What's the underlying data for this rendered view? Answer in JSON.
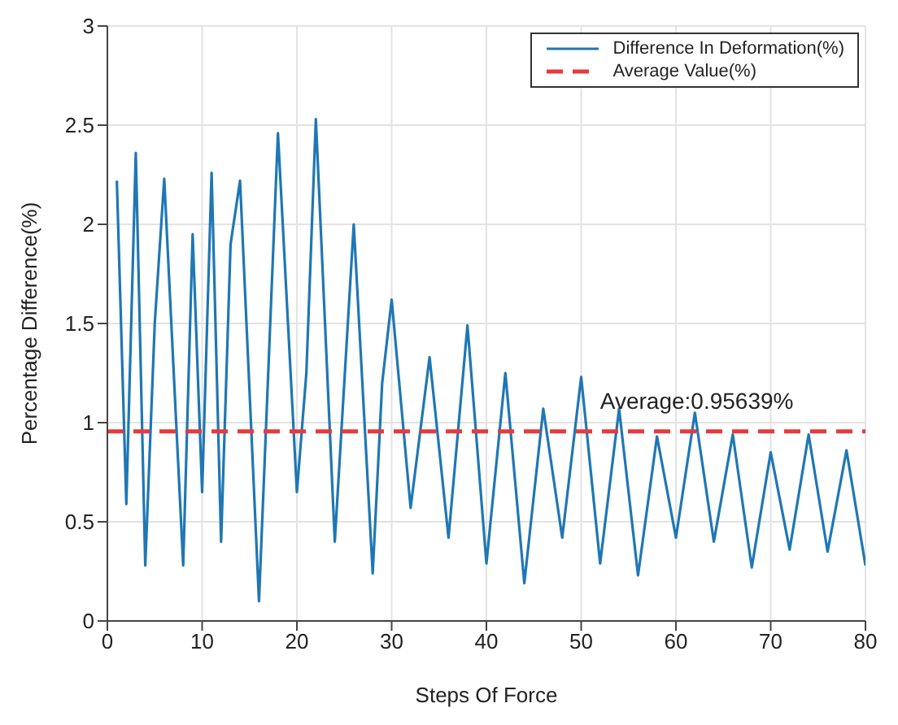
{
  "chart_data": {
    "type": "line",
    "xlabel": "Steps Of Force",
    "ylabel": "Percentage Difference(%)",
    "xlim": [
      0,
      80
    ],
    "xticks": [
      0,
      10,
      20,
      30,
      40,
      50,
      60,
      70,
      80
    ],
    "ylim": [
      0,
      3
    ],
    "yticks": [
      0,
      0.5,
      1,
      1.5,
      2,
      2.5,
      3
    ],
    "grid": true,
    "legend": "top right",
    "marker": "none",
    "series": [
      {
        "name": "Difference In Deformation(%)",
        "color": "#1f77b4",
        "line_style": "solid",
        "x": [
          1,
          2,
          3,
          4,
          5,
          6,
          8,
          9,
          10,
          11,
          12,
          13,
          14,
          16,
          18,
          20,
          21,
          22,
          24,
          26,
          28,
          29,
          30,
          32,
          34,
          36,
          38,
          40,
          42,
          44,
          46,
          48,
          50,
          52,
          54,
          56,
          58,
          60,
          62,
          64,
          66,
          68,
          70,
          72,
          74,
          76,
          78,
          80
        ],
        "values": [
          2.22,
          0.59,
          2.36,
          0.28,
          1.5,
          2.23,
          0.28,
          1.95,
          0.65,
          2.26,
          0.4,
          1.9,
          2.22,
          0.1,
          2.46,
          0.65,
          1.25,
          2.53,
          0.4,
          2.0,
          0.24,
          1.2,
          1.62,
          0.57,
          1.33,
          0.42,
          1.49,
          0.29,
          1.25,
          0.19,
          1.07,
          0.42,
          1.23,
          0.29,
          1.07,
          0.23,
          0.93,
          0.42,
          1.05,
          0.4,
          0.94,
          0.27,
          0.85,
          0.36,
          0.94,
          0.35,
          0.86,
          0.28
        ]
      },
      {
        "name": "Average Value(%)",
        "color": "#e8393b",
        "line_style": "dashed",
        "x": [
          0,
          80
        ],
        "values": [
          0.95639,
          0.95639
        ]
      }
    ],
    "annotations": [
      {
        "text": "Average:0.95639%",
        "x": 52,
        "y": 0.95639
      }
    ]
  }
}
